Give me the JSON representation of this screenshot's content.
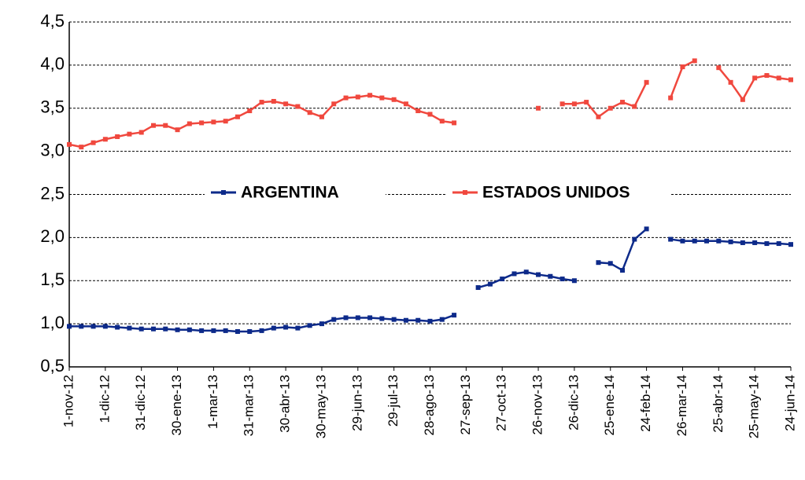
{
  "chart_data": {
    "type": "line",
    "categories": [
      "1-nov-12",
      null,
      null,
      "1-dic-12",
      null,
      null,
      "31-dic-12",
      null,
      null,
      "30-ene-13",
      null,
      null,
      "1-mar-13",
      null,
      null,
      "31-mar-13",
      null,
      null,
      "30-abr-13",
      null,
      null,
      "30-may-13",
      null,
      null,
      "29-jun-13",
      null,
      null,
      "29-jul-13",
      null,
      null,
      "28-ago-13",
      null,
      null,
      "27-sep-13",
      null,
      null,
      "27-oct-13",
      null,
      null,
      "26-nov-13",
      null,
      null,
      "26-dic-13",
      null,
      null,
      "25-ene-14",
      null,
      null,
      "24-feb-14",
      null,
      null,
      "26-mar-14",
      null,
      null,
      "25-abr-14",
      null,
      null,
      "25-may-14",
      null,
      null,
      "24-jun-14"
    ],
    "series": [
      {
        "name": "ARGENTINA",
        "color": "#0d2a8a",
        "values": [
          0.97,
          0.97,
          0.97,
          0.97,
          0.96,
          0.95,
          0.94,
          0.94,
          0.94,
          0.93,
          0.93,
          0.92,
          0.92,
          0.92,
          0.91,
          0.91,
          0.92,
          0.95,
          0.96,
          0.95,
          0.98,
          1.0,
          1.05,
          1.07,
          1.07,
          1.07,
          1.06,
          1.05,
          1.04,
          1.04,
          1.03,
          1.05,
          1.1,
          null,
          1.42,
          1.46,
          1.52,
          1.58,
          1.6,
          1.57,
          1.55,
          1.52,
          1.5,
          null,
          1.71,
          1.7,
          1.62,
          1.98,
          2.1,
          null,
          1.98,
          1.96,
          1.96,
          1.96,
          1.96,
          1.95,
          1.94,
          1.94,
          1.93,
          1.93,
          1.92
        ]
      },
      {
        "name": "ESTADOS UNIDOS",
        "color": "#f0483e",
        "values": [
          3.08,
          3.05,
          3.1,
          3.14,
          3.17,
          3.2,
          3.22,
          3.3,
          3.3,
          3.25,
          3.32,
          3.33,
          3.34,
          3.35,
          3.4,
          3.47,
          3.57,
          3.58,
          3.55,
          3.52,
          3.45,
          3.4,
          3.55,
          3.62,
          3.63,
          3.65,
          3.62,
          3.6,
          3.55,
          3.47,
          3.43,
          3.35,
          3.33,
          null,
          null,
          null,
          null,
          null,
          null,
          3.5,
          null,
          3.55,
          3.55,
          3.57,
          3.4,
          3.5,
          3.57,
          3.52,
          3.8,
          null,
          3.62,
          3.98,
          4.05,
          null,
          3.97,
          3.8,
          3.6,
          3.85,
          3.88,
          3.85,
          3.83
        ]
      }
    ],
    "ylim": [
      0.5,
      4.5
    ],
    "yticks": [
      {
        "value": 0.5,
        "label": "0,5"
      },
      {
        "value": 1.0,
        "label": "1,0"
      },
      {
        "value": 1.5,
        "label": "1,5"
      },
      {
        "value": 2.0,
        "label": "2,0"
      },
      {
        "value": 2.5,
        "label": "2,5"
      },
      {
        "value": 3.0,
        "label": "3,0"
      },
      {
        "value": 3.5,
        "label": "3,5"
      },
      {
        "value": 4.0,
        "label": "4,0"
      },
      {
        "value": 4.5,
        "label": "4,5"
      }
    ],
    "grid": true
  }
}
